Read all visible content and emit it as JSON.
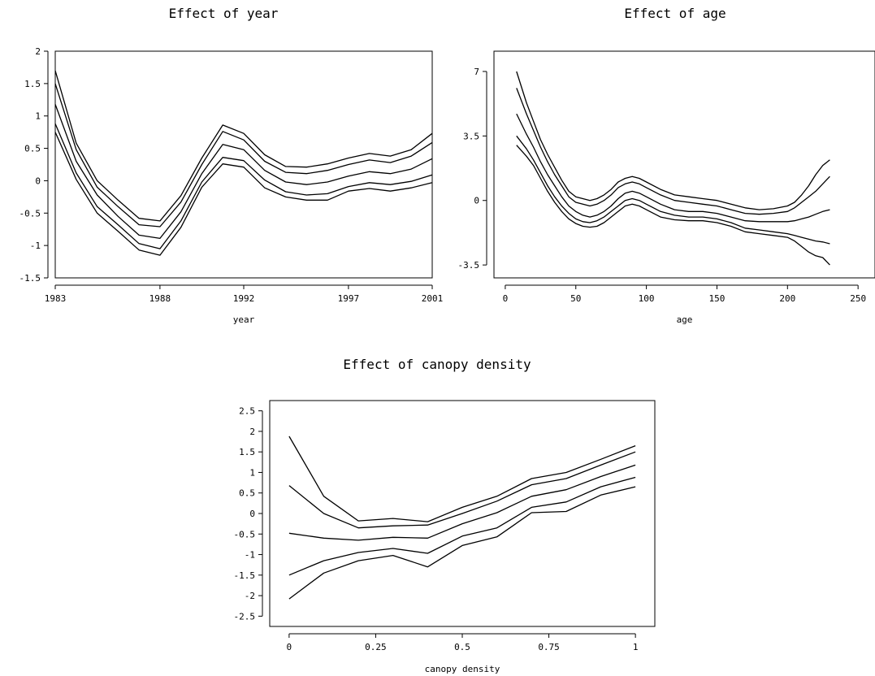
{
  "chart_data": [
    {
      "type": "line",
      "title": "Effect of year",
      "xlabel": "year",
      "ylabel": "",
      "xlim": [
        1983,
        2001
      ],
      "ylim": [
        -1.5,
        2
      ],
      "xticks": [
        1983,
        1988,
        1992,
        1997,
        2001
      ],
      "xtick_labels": [
        "1983",
        "1988",
        "1992",
        "1997",
        "2001"
      ],
      "yticks": [
        -1.5,
        -1,
        -0.5,
        0,
        0.5,
        1,
        1.5,
        2
      ],
      "ytick_labels": [
        "-1.5",
        "-1",
        "-0.5",
        "0",
        "0.5",
        "1",
        "1.5",
        "2"
      ],
      "x": [
        1983,
        1984,
        1985,
        1986,
        1987,
        1988,
        1989,
        1990,
        1991,
        1992,
        1993,
        1994,
        1995,
        1996,
        1997,
        1998,
        1999,
        2000,
        2001
      ],
      "series": [
        {
          "values": [
            1.7,
            0.58,
            0.0,
            -0.3,
            -0.58,
            -0.62,
            -0.23,
            0.35,
            0.86,
            0.73,
            0.4,
            0.22,
            0.21,
            0.26,
            0.35,
            0.42,
            0.38,
            0.48,
            0.73
          ]
        },
        {
          "values": [
            1.5,
            0.48,
            -0.1,
            -0.4,
            -0.68,
            -0.71,
            -0.33,
            0.25,
            0.76,
            0.63,
            0.3,
            0.13,
            0.11,
            0.16,
            0.25,
            0.32,
            0.28,
            0.38,
            0.59
          ]
        },
        {
          "values": [
            1.18,
            0.3,
            -0.22,
            -0.55,
            -0.84,
            -0.89,
            -0.48,
            0.11,
            0.56,
            0.48,
            0.16,
            -0.02,
            -0.06,
            -0.02,
            0.07,
            0.14,
            0.11,
            0.18,
            0.34
          ]
        },
        {
          "values": [
            0.88,
            0.12,
            -0.4,
            -0.68,
            -0.97,
            -1.05,
            -0.62,
            -0.02,
            0.36,
            0.31,
            0.01,
            -0.17,
            -0.22,
            -0.2,
            -0.09,
            -0.03,
            -0.06,
            -0.01,
            0.09
          ]
        },
        {
          "values": [
            0.75,
            0.02,
            -0.5,
            -0.78,
            -1.07,
            -1.15,
            -0.72,
            -0.1,
            0.26,
            0.21,
            -0.11,
            -0.25,
            -0.3,
            -0.3,
            -0.16,
            -0.12,
            -0.16,
            -0.11,
            -0.03
          ]
        }
      ]
    },
    {
      "type": "line",
      "title": "Effect of age",
      "xlabel": "age",
      "ylabel": "",
      "xlim": [
        -8,
        262
      ],
      "ylim": [
        -4.2,
        8.1
      ],
      "xticks": [
        0,
        50,
        100,
        150,
        200,
        250
      ],
      "xtick_labels": [
        "0",
        "50",
        "100",
        "150",
        "200",
        "250"
      ],
      "yticks": [
        -3.5,
        0,
        3.5,
        7
      ],
      "ytick_labels": [
        "-3.5",
        "0",
        "3.5",
        "7"
      ],
      "x": [
        8,
        15,
        20,
        25,
        30,
        35,
        40,
        45,
        50,
        55,
        60,
        65,
        70,
        75,
        80,
        85,
        90,
        95,
        100,
        110,
        120,
        130,
        140,
        150,
        160,
        170,
        180,
        190,
        200,
        205,
        210,
        215,
        220,
        225,
        230
      ],
      "series": [
        {
          "values": [
            7.0,
            5.3,
            4.3,
            3.3,
            2.5,
            1.8,
            1.1,
            0.5,
            0.2,
            0.1,
            0.0,
            0.1,
            0.3,
            0.6,
            1.0,
            1.2,
            1.3,
            1.2,
            1.0,
            0.6,
            0.3,
            0.2,
            0.1,
            0.0,
            -0.2,
            -0.4,
            -0.5,
            -0.45,
            -0.3,
            -0.1,
            0.3,
            0.8,
            1.4,
            1.9,
            2.2
          ]
        },
        {
          "values": [
            6.1,
            4.7,
            3.8,
            2.9,
            2.1,
            1.4,
            0.8,
            0.2,
            -0.1,
            -0.2,
            -0.3,
            -0.2,
            0.0,
            0.3,
            0.7,
            0.9,
            1.0,
            0.9,
            0.7,
            0.3,
            0.0,
            -0.1,
            -0.2,
            -0.3,
            -0.5,
            -0.7,
            -0.75,
            -0.7,
            -0.6,
            -0.4,
            -0.1,
            0.2,
            0.5,
            0.9,
            1.3
          ]
        },
        {
          "values": [
            4.7,
            3.6,
            2.9,
            2.1,
            1.4,
            0.8,
            0.2,
            -0.3,
            -0.6,
            -0.8,
            -0.9,
            -0.8,
            -0.6,
            -0.3,
            0.1,
            0.4,
            0.5,
            0.4,
            0.2,
            -0.2,
            -0.5,
            -0.6,
            -0.6,
            -0.7,
            -0.9,
            -1.1,
            -1.15,
            -1.15,
            -1.15,
            -1.1,
            -1.0,
            -0.9,
            -0.75,
            -0.6,
            -0.5
          ]
        },
        {
          "values": [
            3.5,
            2.8,
            2.2,
            1.5,
            0.8,
            0.2,
            -0.3,
            -0.7,
            -1.0,
            -1.15,
            -1.2,
            -1.1,
            -0.9,
            -0.6,
            -0.3,
            0.0,
            0.1,
            0.0,
            -0.2,
            -0.6,
            -0.8,
            -0.9,
            -0.9,
            -1.0,
            -1.2,
            -1.5,
            -1.6,
            -1.7,
            -1.8,
            -1.9,
            -2.0,
            -2.1,
            -2.2,
            -2.25,
            -2.35
          ]
        },
        {
          "values": [
            3.0,
            2.4,
            1.9,
            1.2,
            0.5,
            -0.1,
            -0.6,
            -1.0,
            -1.25,
            -1.4,
            -1.45,
            -1.4,
            -1.2,
            -0.9,
            -0.6,
            -0.3,
            -0.2,
            -0.3,
            -0.5,
            -0.9,
            -1.05,
            -1.1,
            -1.1,
            -1.2,
            -1.4,
            -1.7,
            -1.8,
            -1.9,
            -2.0,
            -2.2,
            -2.5,
            -2.8,
            -3.0,
            -3.1,
            -3.5
          ]
        }
      ]
    },
    {
      "type": "line",
      "title": "Effect of canopy density",
      "xlabel": "canopy density",
      "ylabel": "",
      "xlim": [
        -0.056,
        1.056
      ],
      "ylim": [
        -2.75,
        2.75
      ],
      "xticks": [
        0,
        0.25,
        0.5,
        0.75,
        1
      ],
      "xtick_labels": [
        "0",
        "0.25",
        "0.5",
        "0.75",
        "1"
      ],
      "yticks": [
        -2.5,
        -2,
        -1.5,
        -1,
        -0.5,
        0,
        0.5,
        1,
        1.5,
        2,
        2.5
      ],
      "ytick_labels": [
        "-2.5",
        "-2",
        "-1.5",
        "-1",
        "-0.5",
        "0",
        "0.5",
        "1",
        "1.5",
        "2",
        "2.5"
      ],
      "x": [
        0,
        0.1,
        0.2,
        0.3,
        0.4,
        0.5,
        0.6,
        0.7,
        0.8,
        0.9,
        1.0
      ],
      "series": [
        {
          "values": [
            1.88,
            0.42,
            -0.18,
            -0.12,
            -0.2,
            0.15,
            0.42,
            0.85,
            1.0,
            1.32,
            1.65
          ]
        },
        {
          "values": [
            0.68,
            0.0,
            -0.35,
            -0.3,
            -0.28,
            0.0,
            0.3,
            0.7,
            0.85,
            1.18,
            1.5
          ]
        },
        {
          "values": [
            -0.48,
            -0.6,
            -0.65,
            -0.58,
            -0.6,
            -0.25,
            0.02,
            0.42,
            0.58,
            0.9,
            1.18
          ]
        },
        {
          "values": [
            -1.5,
            -1.15,
            -0.95,
            -0.85,
            -0.97,
            -0.55,
            -0.35,
            0.15,
            0.28,
            0.65,
            0.88
          ]
        },
        {
          "values": [
            -2.08,
            -1.45,
            -1.15,
            -1.02,
            -1.3,
            -0.78,
            -0.57,
            0.02,
            0.05,
            0.45,
            0.65
          ]
        }
      ]
    }
  ]
}
